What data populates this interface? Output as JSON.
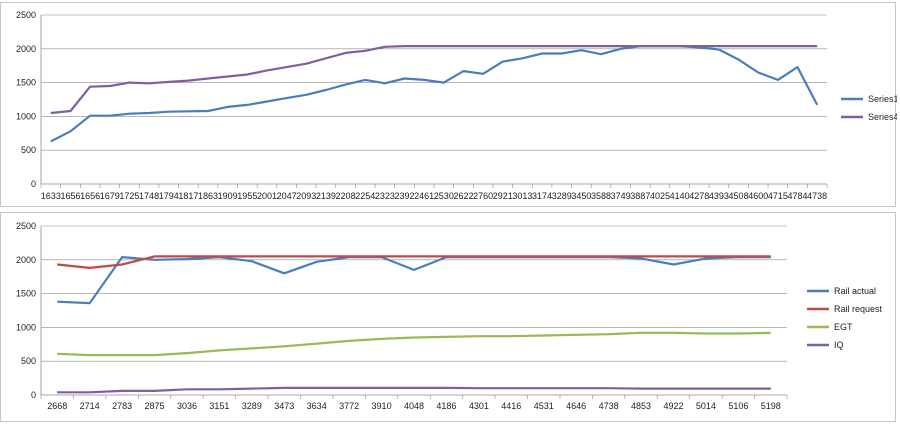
{
  "chart_data": [
    {
      "type": "line",
      "ylim": [
        0,
        2500
      ],
      "yticks": [
        0,
        500,
        1000,
        1500,
        2000,
        2500
      ],
      "grid": true,
      "legend_position": "right",
      "categories": [
        "1633",
        "1656",
        "1656",
        "1679",
        "1725",
        "1748",
        "1794",
        "1817",
        "1863",
        "1909",
        "1955",
        "2001",
        "2047",
        "2093",
        "2139",
        "2208",
        "2254",
        "2323",
        "2392",
        "2461",
        "2530",
        "2622",
        "2760",
        "2921",
        "3013",
        "3174",
        "3289",
        "3450",
        "3588",
        "3749",
        "3887",
        "4025",
        "4140",
        "4278",
        "4393",
        "4508",
        "4600",
        "4715",
        "4784",
        "4738"
      ],
      "series": [
        {
          "name": "Series1",
          "color": "#4a7ebb",
          "values": [
            630,
            780,
            1010,
            1010,
            1040,
            1050,
            1070,
            1075,
            1080,
            1140,
            1170,
            1220,
            1270,
            1320,
            1390,
            1470,
            1540,
            1490,
            1560,
            1540,
            1500,
            1670,
            1630,
            1810,
            1860,
            1930,
            1930,
            1980,
            1920,
            2000,
            2040,
            2040,
            2040,
            2020,
            1990,
            1840,
            1650,
            1540,
            1730,
            1170
          ]
        },
        {
          "name": "Series4",
          "color": "#7f5fa0",
          "values": [
            1050,
            1080,
            1440,
            1450,
            1500,
            1490,
            1510,
            1530,
            1560,
            1590,
            1620,
            1680,
            1730,
            1780,
            1860,
            1940,
            1970,
            2030,
            2040,
            2040,
            2040,
            2040,
            2040,
            2040,
            2040,
            2040,
            2040,
            2040,
            2040,
            2040,
            2040,
            2040,
            2040,
            2040,
            2040,
            2040,
            2040,
            2040,
            2040,
            2040
          ]
        }
      ]
    },
    {
      "type": "line",
      "ylim": [
        0,
        2500
      ],
      "yticks": [
        0,
        500,
        1000,
        1500,
        2000,
        2500
      ],
      "grid": true,
      "legend_position": "right",
      "categories": [
        "2668",
        "2714",
        "2783",
        "2875",
        "3036",
        "3151",
        "3289",
        "3473",
        "3634",
        "3772",
        "3910",
        "4048",
        "4186",
        "4301",
        "4416",
        "4531",
        "4646",
        "4738",
        "4853",
        "4922",
        "5014",
        "5106",
        "5198"
      ],
      "series": [
        {
          "name": "Rail actual",
          "color": "#4a7ebb",
          "values": [
            1380,
            1360,
            2040,
            2000,
            2010,
            2040,
            1980,
            1800,
            1970,
            2040,
            2040,
            1850,
            2040,
            2040,
            2040,
            2040,
            2040,
            2040,
            2020,
            1930,
            2020,
            2040,
            2040
          ]
        },
        {
          "name": "Rail request",
          "color": "#be4b48",
          "values": [
            1930,
            1880,
            1930,
            2050,
            2050,
            2050,
            2050,
            2050,
            2050,
            2050,
            2050,
            2050,
            2050,
            2050,
            2050,
            2050,
            2050,
            2050,
            2050,
            2050,
            2050,
            2050,
            2050
          ]
        },
        {
          "name": "EGT",
          "color": "#98b954",
          "values": [
            610,
            590,
            590,
            590,
            620,
            660,
            690,
            720,
            760,
            800,
            830,
            850,
            860,
            870,
            870,
            880,
            890,
            900,
            920,
            920,
            910,
            910,
            920
          ]
        },
        {
          "name": "IQ",
          "color": "#7d60a0",
          "values": [
            40,
            40,
            60,
            60,
            85,
            85,
            95,
            105,
            105,
            105,
            105,
            105,
            105,
            100,
            100,
            100,
            100,
            100,
            95,
            95,
            95,
            95,
            95
          ]
        }
      ]
    }
  ]
}
